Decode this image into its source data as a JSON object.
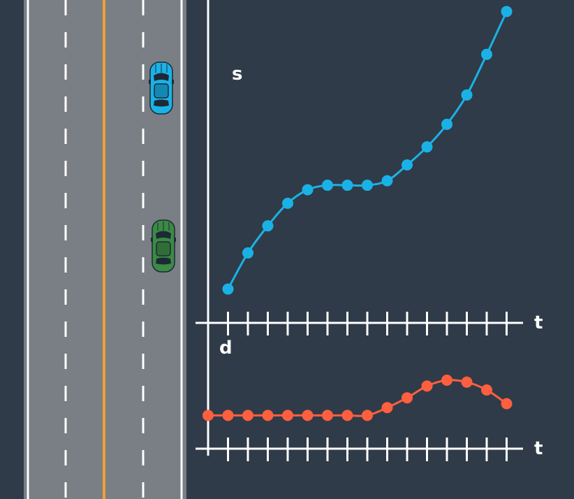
{
  "colors": {
    "background": "#2f3b48",
    "road": "#7a7e85",
    "road_edge": "#ffffff",
    "lane_marking": "#ffffff",
    "center_line": "#f0a030",
    "s_series": "#1ab2e6",
    "d_series": "#ff5f3f",
    "axis": "#ffffff"
  },
  "vehicles": [
    {
      "name": "ego-car",
      "color": "#1ab2e6",
      "icon": "car-top-view-icon"
    },
    {
      "name": "other-car",
      "color": "#3c8a44",
      "icon": "car-top-view-icon"
    }
  ],
  "chart_data": [
    {
      "type": "line",
      "xlabel": "t",
      "ylabel": "s",
      "x": [
        1,
        2,
        3,
        4,
        5,
        6,
        7,
        8,
        9,
        10,
        11,
        12,
        13,
        14,
        15
      ],
      "values": [
        1.5,
        3.1,
        4.3,
        5.3,
        5.9,
        6.1,
        6.1,
        6.1,
        6.3,
        7.0,
        7.8,
        8.8,
        10.1,
        11.9,
        13.8
      ],
      "ylim": [
        0,
        14
      ],
      "xlim": [
        0,
        15.8
      ],
      "grid": false,
      "legend": "none"
    },
    {
      "type": "line",
      "xlabel": "t",
      "ylabel": "d",
      "x": [
        0,
        1,
        2,
        3,
        4,
        5,
        6,
        7,
        8,
        9,
        10,
        11,
        12,
        13,
        14,
        15
      ],
      "values": [
        1.7,
        1.7,
        1.7,
        1.7,
        1.7,
        1.7,
        1.7,
        1.7,
        1.7,
        2.1,
        2.6,
        3.2,
        3.5,
        3.4,
        3.0,
        2.3
      ],
      "ylim": [
        0,
        5
      ],
      "xlim": [
        0,
        15.8
      ],
      "grid": false,
      "legend": "none"
    }
  ]
}
